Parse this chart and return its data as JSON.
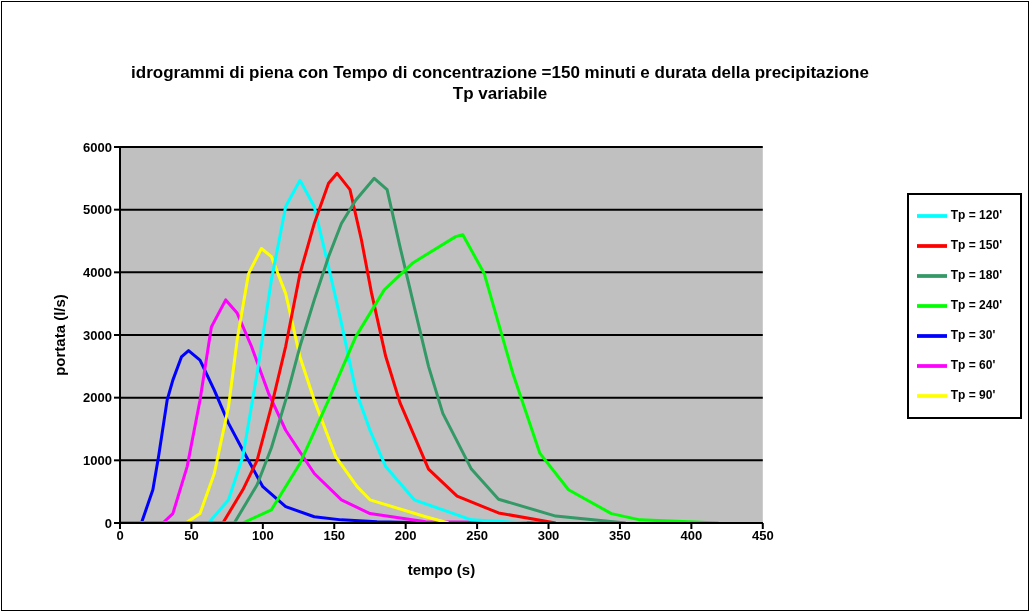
{
  "chart_data": {
    "type": "line",
    "title": "idrogrammi di piena con Tempo di concentrazione =150 minuti e durata della precipitazione Tp variabile",
    "xlabel": "tempo (s)",
    "ylabel": "portata (l/s)",
    "xlim": [
      0,
      450
    ],
    "xticks": [
      0,
      50,
      100,
      150,
      200,
      250,
      300,
      350,
      400,
      450
    ],
    "ylim": [
      0,
      6000
    ],
    "yticks": [
      0,
      1000,
      2000,
      3000,
      4000,
      5000,
      6000
    ],
    "grid": "y",
    "legend": "right",
    "marker": "none",
    "line_style": "solid",
    "series": [
      {
        "name": "Tp = 30'",
        "color": "#0000ff",
        "x": [
          0,
          15,
          23,
          27,
          33,
          37,
          43,
          48,
          56,
          66,
          76,
          86,
          100,
          116,
          136,
          155,
          180,
          220
        ],
        "values": [
          0,
          0,
          530,
          1060,
          1960,
          2280,
          2650,
          2750,
          2600,
          2120,
          1590,
          1160,
          580,
          260,
          100,
          50,
          20,
          0
        ]
      },
      {
        "name": "Tp = 60'",
        "color": "#ff00ff",
        "x": [
          0,
          30,
          37,
          47,
          56,
          64,
          74,
          82,
          92,
          104,
          116,
          136,
          155,
          175,
          214,
          300
        ],
        "values": [
          0,
          0,
          150,
          900,
          1960,
          3130,
          3560,
          3350,
          2820,
          2070,
          1480,
          790,
          370,
          150,
          20,
          0
        ]
      },
      {
        "name": "Tp = 90'",
        "color": "#ffff00",
        "x": [
          0,
          46,
          56,
          66,
          76,
          82,
          90,
          99,
          106,
          116,
          126,
          136,
          151,
          166,
          175,
          214,
          230
        ],
        "values": [
          0,
          0,
          150,
          790,
          1860,
          2920,
          3980,
          4380,
          4250,
          3660,
          2650,
          1960,
          1060,
          580,
          370,
          100,
          0
        ]
      },
      {
        "name": "Tp = 120'",
        "color": "#00ffff",
        "x": [
          0,
          62,
          76,
          86,
          96,
          106,
          116,
          126,
          136,
          146,
          155,
          165,
          175,
          186,
          206,
          246,
          285
        ],
        "values": [
          0,
          0,
          370,
          1060,
          2390,
          3880,
          5050,
          5470,
          5050,
          4090,
          3190,
          2120,
          1480,
          900,
          370,
          50,
          0
        ]
      },
      {
        "name": "Tp = 150'",
        "color": "#ff0000",
        "x": [
          0,
          72,
          86,
          96,
          106,
          116,
          126,
          136,
          146,
          152,
          161,
          169,
          176,
          186,
          196,
          216,
          236,
          265,
          305
        ],
        "values": [
          0,
          0,
          530,
          1000,
          1860,
          2820,
          3980,
          4780,
          5420,
          5580,
          5320,
          4520,
          3680,
          2660,
          1920,
          860,
          430,
          160,
          0
        ]
      },
      {
        "name": "Tp = 180'",
        "color": "#339966",
        "x": [
          0,
          80,
          96,
          106,
          116,
          126,
          136,
          146,
          155,
          165,
          178,
          187,
          196,
          206,
          216,
          226,
          246,
          265,
          305,
          354
        ],
        "values": [
          0,
          0,
          610,
          1200,
          1960,
          2820,
          3560,
          4250,
          4780,
          5150,
          5500,
          5320,
          4410,
          3450,
          2500,
          1750,
          860,
          380,
          110,
          0
        ]
      },
      {
        "name": "Tp = 240'",
        "color": "#00ff00",
        "x": [
          0,
          86,
          106,
          126,
          146,
          165,
          185,
          205,
          235,
          240,
          255,
          275,
          294,
          314,
          344,
          364,
          419
        ],
        "values": [
          0,
          0,
          210,
          950,
          1960,
          2970,
          3720,
          4150,
          4570,
          4600,
          3980,
          2390,
          1110,
          530,
          150,
          50,
          0
        ]
      }
    ]
  }
}
